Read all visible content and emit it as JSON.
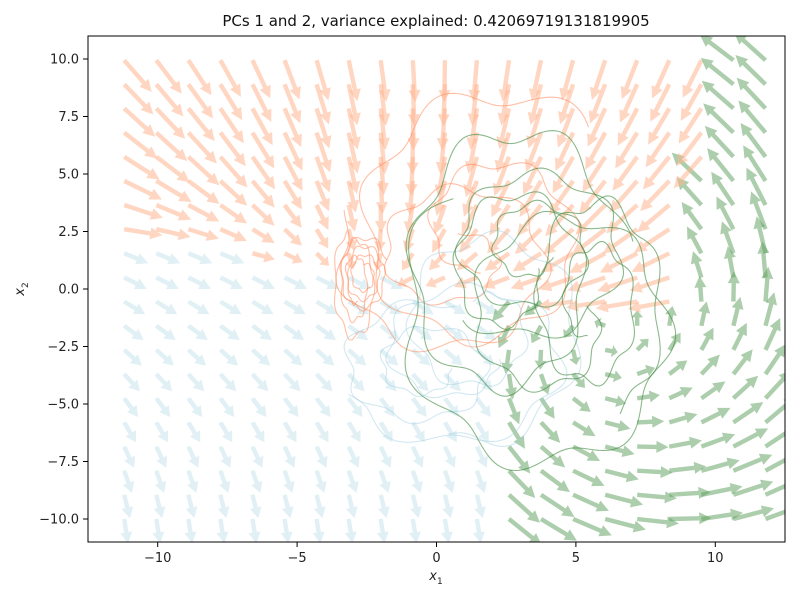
{
  "chart_data": {
    "type": "quiver",
    "title": "PCs 1 and 2, variance explained: 0.42069719131819905",
    "xlabel_main": "x",
    "xlabel_sub": "1",
    "ylabel_main": "x",
    "ylabel_sub": "2",
    "xlim": [
      -12.5,
      12.5
    ],
    "ylim": [
      -11,
      11
    ],
    "xticks": [
      -10,
      -5,
      0,
      5,
      10
    ],
    "yticks": [
      -10.0,
      -7.5,
      -5.0,
      -2.5,
      0.0,
      2.5,
      5.0,
      7.5,
      10.0
    ],
    "xtick_labels": [
      "−10",
      "−5",
      "0",
      "5",
      "10"
    ],
    "ytick_labels": [
      "−10.0",
      "−7.5",
      "−5.0",
      "−2.5",
      "0.0",
      "2.5",
      "5.0",
      "7.5",
      "10.0"
    ],
    "grid": false,
    "colors": {
      "orange_field": "#ffb490",
      "orange_traj": "#ff8a5c",
      "blue_field": "#add8e6",
      "blue_traj": "#9ccde0",
      "green_field": "#5a9e5a",
      "green_traj": "#3d8a3d"
    },
    "vector_field": {
      "grid_x_start": -11.2,
      "grid_x_step": 1.15,
      "grid_x_count": 21,
      "grid_y_start": -10.0,
      "grid_y_step": 1.05,
      "grid_y_count": 20,
      "regions": [
        "orange",
        "blue",
        "green"
      ]
    },
    "trajectories": [
      {
        "group": "orange",
        "center": [
          -2.6,
          0.6
        ],
        "rx_start": 0.9,
        "rx_end": 0.3,
        "ry_start": 1.7,
        "ry_end": 0.5,
        "turns": 3.2,
        "phase": 0.4
      },
      {
        "group": "orange",
        "center": [
          -2.9,
          0.2
        ],
        "rx_start": 0.8,
        "rx_end": 0.2,
        "ry_start": 2.6,
        "ry_end": 0.8,
        "turns": 2.5,
        "phase": 2.0
      },
      {
        "group": "orange",
        "center": [
          1.8,
          2.4
        ],
        "rx_start": 5.2,
        "rx_end": 1.4,
        "ry_start": 6.4,
        "ry_end": 1.6,
        "turns": 1.6,
        "phase": 0.8
      },
      {
        "group": "orange",
        "center": [
          0.6,
          1.4
        ],
        "rx_start": 4.2,
        "rx_end": 1.2,
        "ry_start": 4.6,
        "ry_end": 1.0,
        "turns": 1.8,
        "phase": 2.7
      },
      {
        "group": "blue",
        "center": [
          0.8,
          -2.8
        ],
        "rx_start": 4.6,
        "rx_end": 1.4,
        "ry_start": 4.2,
        "ry_end": 1.4,
        "turns": 1.4,
        "phase": 3.6
      },
      {
        "group": "blue",
        "center": [
          1.6,
          -1.6
        ],
        "rx_start": 4.0,
        "rx_end": 1.0,
        "ry_start": 5.2,
        "ry_end": 1.2,
        "turns": 1.6,
        "phase": 4.4
      },
      {
        "group": "blue",
        "center": [
          -0.4,
          -3.4
        ],
        "rx_start": 3.2,
        "rx_end": 0.9,
        "ry_start": 2.9,
        "ry_end": 0.9,
        "turns": 1.8,
        "phase": 1.2
      },
      {
        "group": "green",
        "center": [
          2.6,
          0.6
        ],
        "rx_start": 4.2,
        "rx_end": 1.0,
        "ry_start": 6.8,
        "ry_end": 1.4,
        "turns": 2.0,
        "phase": 0.2
      },
      {
        "group": "green",
        "center": [
          4.2,
          -1.4
        ],
        "rx_start": 5.6,
        "rx_end": 1.4,
        "ry_start": 7.4,
        "ry_end": 1.8,
        "turns": 1.7,
        "phase": 2.3
      },
      {
        "group": "green",
        "center": [
          3.4,
          1.8
        ],
        "rx_start": 3.6,
        "rx_end": 0.8,
        "ry_start": 4.0,
        "ry_end": 1.0,
        "turns": 2.3,
        "phase": 4.0
      },
      {
        "group": "green",
        "center": [
          5.6,
          -0.6
        ],
        "rx_start": 2.6,
        "rx_end": 0.8,
        "ry_start": 5.2,
        "ry_end": 1.6,
        "turns": 1.9,
        "phase": 5.1
      }
    ]
  }
}
